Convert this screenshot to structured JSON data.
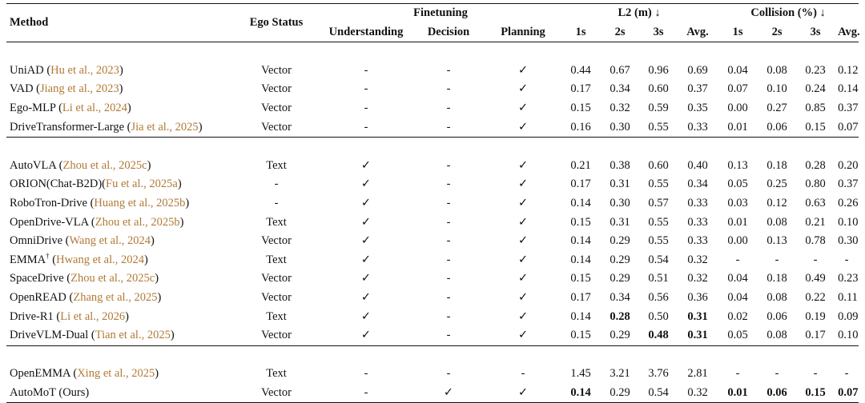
{
  "header": {
    "method": "Method",
    "ego_status": "Ego Status",
    "finetuning": "Finetuning",
    "understanding": "Understanding",
    "decision": "Decision",
    "planning": "Planning",
    "l2": "L2 (m) ↓",
    "collision": "Collision (%) ↓",
    "t1": "1s",
    "t2": "2s",
    "t3": "3s",
    "avg": "Avg."
  },
  "groups": [
    [
      {
        "name": "UniAD (",
        "cite": "Hu et al., 2023",
        "close": ")",
        "sup": "",
        "ego": "Vector",
        "und": "-",
        "dec": "-",
        "plan": "✓",
        "l2": [
          "0.44",
          "0.67",
          "0.96",
          "0.69"
        ],
        "col": [
          "0.04",
          "0.08",
          "0.23",
          "0.12"
        ],
        "bl2": [
          false,
          false,
          false,
          false
        ],
        "bcol": [
          false,
          false,
          false,
          false
        ]
      },
      {
        "name": "VAD (",
        "cite": "Jiang et al., 2023",
        "close": ")",
        "sup": "",
        "ego": "Vector",
        "und": "-",
        "dec": "-",
        "plan": "✓",
        "l2": [
          "0.17",
          "0.34",
          "0.60",
          "0.37"
        ],
        "col": [
          "0.07",
          "0.10",
          "0.24",
          "0.14"
        ],
        "bl2": [
          false,
          false,
          false,
          false
        ],
        "bcol": [
          false,
          false,
          false,
          false
        ]
      },
      {
        "name": "Ego-MLP (",
        "cite": "Li et al., 2024",
        "close": ")",
        "sup": "",
        "ego": "Vector",
        "und": "-",
        "dec": "-",
        "plan": "✓",
        "l2": [
          "0.15",
          "0.32",
          "0.59",
          "0.35"
        ],
        "col": [
          "0.00",
          "0.27",
          "0.85",
          "0.37"
        ],
        "bl2": [
          false,
          false,
          false,
          false
        ],
        "bcol": [
          false,
          false,
          false,
          false
        ]
      },
      {
        "name": "DriveTransformer-Large (",
        "cite": "Jia et al., 2025",
        "close": ")",
        "sup": "",
        "ego": "Vector",
        "und": "-",
        "dec": "-",
        "plan": "✓",
        "l2": [
          "0.16",
          "0.30",
          "0.55",
          "0.33"
        ],
        "col": [
          "0.01",
          "0.06",
          "0.15",
          "0.07"
        ],
        "bl2": [
          false,
          false,
          false,
          false
        ],
        "bcol": [
          false,
          false,
          false,
          false
        ]
      }
    ],
    [
      {
        "name": "AutoVLA (",
        "cite": "Zhou et al., 2025c",
        "close": ")",
        "sup": "",
        "ego": "Text",
        "und": "✓",
        "dec": "-",
        "plan": "✓",
        "l2": [
          "0.21",
          "0.38",
          "0.60",
          "0.40"
        ],
        "col": [
          "0.13",
          "0.18",
          "0.28",
          "0.20"
        ],
        "bl2": [
          false,
          false,
          false,
          false
        ],
        "bcol": [
          false,
          false,
          false,
          false
        ]
      },
      {
        "name": "ORION(Chat-B2D)(",
        "cite": "Fu et al., 2025a",
        "close": ")",
        "sup": "",
        "ego": "-",
        "und": "✓",
        "dec": "-",
        "plan": "✓",
        "l2": [
          "0.17",
          "0.31",
          "0.55",
          "0.34"
        ],
        "col": [
          "0.05",
          "0.25",
          "0.80",
          "0.37"
        ],
        "bl2": [
          false,
          false,
          false,
          false
        ],
        "bcol": [
          false,
          false,
          false,
          false
        ]
      },
      {
        "name": "RoboTron-Drive (",
        "cite": "Huang et al., 2025b",
        "close": ")",
        "sup": "",
        "ego": "-",
        "und": "✓",
        "dec": "-",
        "plan": "✓",
        "l2": [
          "0.14",
          "0.30",
          "0.57",
          "0.33"
        ],
        "col": [
          "0.03",
          "0.12",
          "0.63",
          "0.26"
        ],
        "bl2": [
          false,
          false,
          false,
          false
        ],
        "bcol": [
          false,
          false,
          false,
          false
        ]
      },
      {
        "name": "OpenDrive-VLA (",
        "cite": "Zhou et al., 2025b",
        "close": ")",
        "sup": "",
        "ego": "Text",
        "und": "✓",
        "dec": "-",
        "plan": "✓",
        "l2": [
          "0.15",
          "0.31",
          "0.55",
          "0.33"
        ],
        "col": [
          "0.01",
          "0.08",
          "0.21",
          "0.10"
        ],
        "bl2": [
          false,
          false,
          false,
          false
        ],
        "bcol": [
          false,
          false,
          false,
          false
        ]
      },
      {
        "name": "OmniDrive (",
        "cite": "Wang et al., 2024",
        "close": ")",
        "sup": "",
        "ego": "Vector",
        "und": "✓",
        "dec": "-",
        "plan": "✓",
        "l2": [
          "0.14",
          "0.29",
          "0.55",
          "0.33"
        ],
        "col": [
          "0.00",
          "0.13",
          "0.78",
          "0.30"
        ],
        "bl2": [
          false,
          false,
          false,
          false
        ],
        "bcol": [
          false,
          false,
          false,
          false
        ]
      },
      {
        "name": "EMMA",
        "cite": "Hwang et al., 2024",
        "close": ")",
        "sup": "†",
        "ego": "Text",
        "und": "✓",
        "dec": "-",
        "plan": "✓",
        "l2": [
          "0.14",
          "0.29",
          "0.54",
          "0.32"
        ],
        "col": [
          "-",
          "-",
          "-",
          "-"
        ],
        "bl2": [
          false,
          false,
          false,
          false
        ],
        "bcol": [
          false,
          false,
          false,
          false
        ]
      },
      {
        "name": "SpaceDrive (",
        "cite": "Zhou et al., 2025c",
        "close": ")",
        "sup": "",
        "ego": "Vector",
        "und": "✓",
        "dec": "-",
        "plan": "✓",
        "l2": [
          "0.15",
          "0.29",
          "0.51",
          "0.32"
        ],
        "col": [
          "0.04",
          "0.18",
          "0.49",
          "0.23"
        ],
        "bl2": [
          false,
          false,
          false,
          false
        ],
        "bcol": [
          false,
          false,
          false,
          false
        ]
      },
      {
        "name": "OpenREAD (",
        "cite": "Zhang et al., 2025",
        "close": ")",
        "sup": "",
        "ego": "Vector",
        "und": "✓",
        "dec": "-",
        "plan": "✓",
        "l2": [
          "0.17",
          "0.34",
          "0.56",
          "0.36"
        ],
        "col": [
          "0.04",
          "0.08",
          "0.22",
          "0.11"
        ],
        "bl2": [
          false,
          false,
          false,
          false
        ],
        "bcol": [
          false,
          false,
          false,
          false
        ]
      },
      {
        "name": "Drive-R1 (",
        "cite": "Li et al., 2026",
        "close": ")",
        "sup": "",
        "ego": "Text",
        "und": "✓",
        "dec": "-",
        "plan": "✓",
        "l2": [
          "0.14",
          "0.28",
          "0.50",
          "0.31"
        ],
        "col": [
          "0.02",
          "0.06",
          "0.19",
          "0.09"
        ],
        "bl2": [
          false,
          true,
          false,
          true
        ],
        "bcol": [
          false,
          false,
          false,
          false
        ]
      },
      {
        "name": "DriveVLM-Dual (",
        "cite": "Tian et al., 2025",
        "close": ")",
        "sup": "",
        "ego": "Vector",
        "und": "✓",
        "dec": "-",
        "plan": "✓",
        "l2": [
          "0.15",
          "0.29",
          "0.48",
          "0.31"
        ],
        "col": [
          "0.05",
          "0.08",
          "0.17",
          "0.10"
        ],
        "bl2": [
          false,
          false,
          true,
          true
        ],
        "bcol": [
          false,
          false,
          false,
          false
        ]
      }
    ],
    [
      {
        "name": "OpenEMMA (",
        "cite": "Xing et al., 2025",
        "close": ")",
        "sup": "",
        "ego": "Text",
        "und": "-",
        "dec": "-",
        "plan": "-",
        "l2": [
          "1.45",
          "3.21",
          "3.76",
          "2.81"
        ],
        "col": [
          "-",
          "-",
          "-",
          "-"
        ],
        "bl2": [
          false,
          false,
          false,
          false
        ],
        "bcol": [
          false,
          false,
          false,
          false
        ]
      },
      {
        "name": "AutoMoT (Ours)",
        "cite": "",
        "close": "",
        "sup": "",
        "ego": "Vector",
        "und": "-",
        "dec": "✓",
        "plan": "✓",
        "l2": [
          "0.14",
          "0.29",
          "0.54",
          "0.32"
        ],
        "col": [
          "0.01",
          "0.06",
          "0.15",
          "0.07"
        ],
        "bl2": [
          true,
          false,
          false,
          false
        ],
        "bcol": [
          true,
          true,
          true,
          true
        ]
      }
    ]
  ]
}
